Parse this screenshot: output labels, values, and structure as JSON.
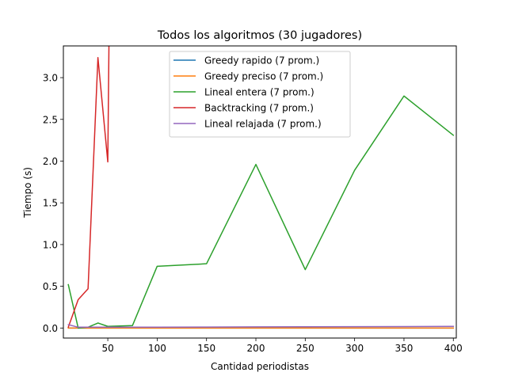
{
  "chart_data": {
    "type": "line",
    "title": "Todos los algoritmos (30 jugadores)",
    "xlabel": "Cantidad periodistas",
    "ylabel": "Tiempo (s)",
    "xlim": [
      5,
      403
    ],
    "ylim": [
      -0.12,
      3.38
    ],
    "xticks": [
      50,
      100,
      150,
      200,
      250,
      300,
      350,
      400
    ],
    "yticks": [
      0.0,
      0.5,
      1.0,
      1.5,
      2.0,
      2.5,
      3.0
    ],
    "xtick_labels": [
      "50",
      "100",
      "150",
      "200",
      "250",
      "300",
      "350",
      "400"
    ],
    "ytick_labels": [
      "0.0",
      "0.5",
      "1.0",
      "1.5",
      "2.0",
      "2.5",
      "3.0"
    ],
    "grid": false,
    "legend_position": "top-center",
    "series": [
      {
        "name": "Greedy rapido  (7 prom.)",
        "color": "#1f77b4",
        "x": [
          10,
          20,
          30,
          40,
          50,
          75,
          100,
          150,
          200,
          250,
          300,
          350,
          400
        ],
        "y": [
          0.0,
          0.0,
          0.0,
          0.0,
          0.0,
          0.0,
          0.0,
          0.0,
          0.0,
          0.0,
          0.0,
          0.0,
          0.0
        ]
      },
      {
        "name": "Greedy preciso  (7 prom.)",
        "color": "#ff7f0e",
        "x": [
          10,
          20,
          30,
          40,
          50,
          75,
          100,
          150,
          200,
          250,
          300,
          350,
          400
        ],
        "y": [
          0.0,
          0.0,
          0.0,
          0.0,
          0.0,
          0.0,
          0.0,
          0.0,
          0.0,
          0.0,
          0.0,
          0.0,
          0.0
        ]
      },
      {
        "name": "Lineal entera  (7 prom.)",
        "color": "#2ca02c",
        "x": [
          10,
          20,
          30,
          40,
          50,
          75,
          100,
          150,
          200,
          250,
          300,
          350,
          400
        ],
        "y": [
          0.52,
          0.0,
          0.01,
          0.06,
          0.02,
          0.03,
          0.74,
          0.77,
          1.96,
          0.7,
          1.89,
          2.78,
          2.31
        ]
      },
      {
        "name": "Backtracking (7 prom.)",
        "color": "#d62728",
        "x": [
          10,
          20,
          30,
          40,
          50,
          51.5
        ],
        "y": [
          0.01,
          0.34,
          0.47,
          3.24,
          1.99,
          3.8
        ]
      },
      {
        "name": "Lineal relajada  (7 prom.)",
        "color": "#9467bd",
        "x": [
          10,
          20,
          30,
          40,
          50,
          75,
          100,
          150,
          200,
          250,
          300,
          350,
          400
        ],
        "y": [
          0.04,
          0.01,
          0.01,
          0.01,
          0.01,
          0.01,
          0.01,
          0.012,
          0.014,
          0.015,
          0.016,
          0.018,
          0.02
        ]
      }
    ]
  }
}
